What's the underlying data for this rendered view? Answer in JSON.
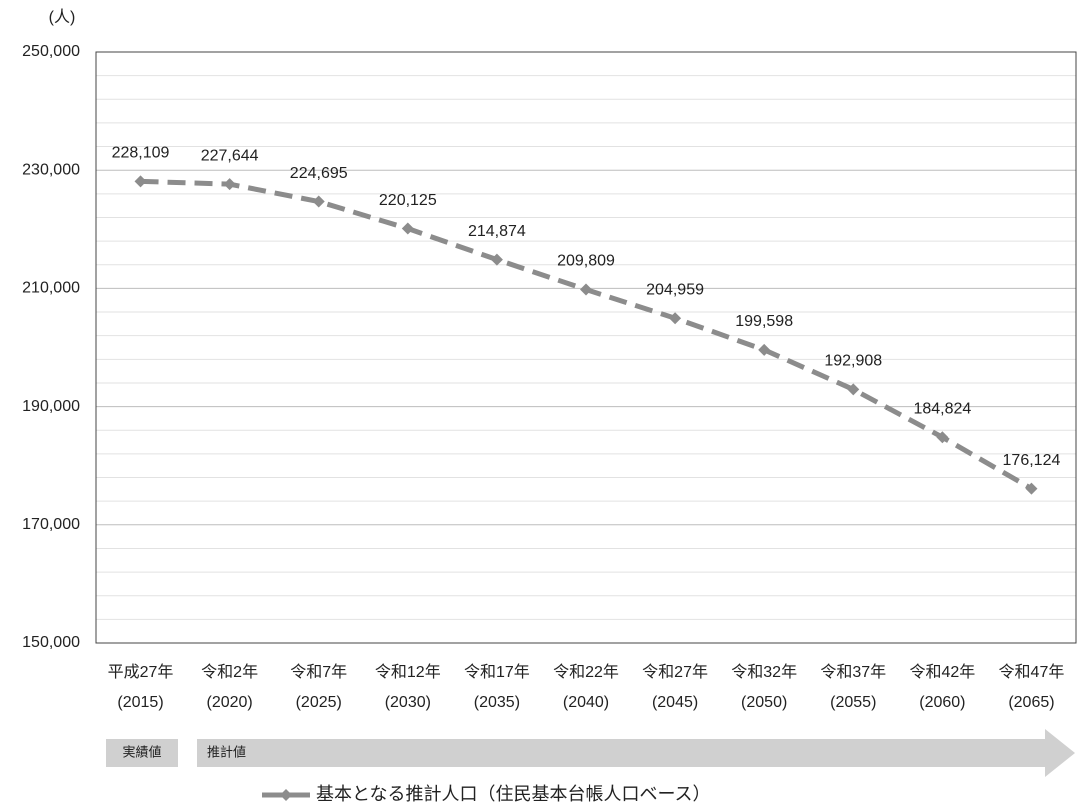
{
  "chart_data": {
    "type": "line",
    "unit_label": "(人)",
    "categories": [
      [
        "平成27年",
        "(2015)"
      ],
      [
        "令和2年",
        "(2020)"
      ],
      [
        "令和7年",
        "(2025)"
      ],
      [
        "令和12年",
        "(2030)"
      ],
      [
        "令和17年",
        "(2035)"
      ],
      [
        "令和22年",
        "(2040)"
      ],
      [
        "令和27年",
        "(2045)"
      ],
      [
        "令和32年",
        "(2050)"
      ],
      [
        "令和37年",
        "(2055)"
      ],
      [
        "令和42年",
        "(2060)"
      ],
      [
        "令和47年",
        "(2065)"
      ]
    ],
    "series": [
      {
        "name": "基本となる推計人口（住民基本台帳人口ベース）",
        "color": "#8c8c8c",
        "values": [
          228109,
          227644,
          224695,
          220125,
          214874,
          209809,
          204959,
          199598,
          192908,
          184824,
          176124
        ],
        "value_labels": [
          "228,109",
          "227,644",
          "224,695",
          "220,125",
          "214,874",
          "209,809",
          "204,959",
          "199,598",
          "192,908",
          "184,824",
          "176,124"
        ]
      }
    ],
    "ylim": [
      150000,
      250000
    ],
    "yticks": [
      {
        "value": 150000,
        "label": "150,000"
      },
      {
        "value": 170000,
        "label": "170,000"
      },
      {
        "value": 190000,
        "label": "190,000"
      },
      {
        "value": 210000,
        "label": "210,000"
      },
      {
        "value": 230000,
        "label": "230,000"
      },
      {
        "value": 250000,
        "label": "250,000"
      }
    ],
    "minor_yticks": [
      154000,
      158000,
      162000,
      166000,
      174000,
      178000,
      182000,
      186000,
      194000,
      198000,
      202000,
      206000,
      214000,
      218000,
      222000,
      226000,
      234000,
      238000,
      242000,
      246000
    ],
    "grid": true,
    "annotations": [
      "実績値",
      "推計値"
    ]
  }
}
